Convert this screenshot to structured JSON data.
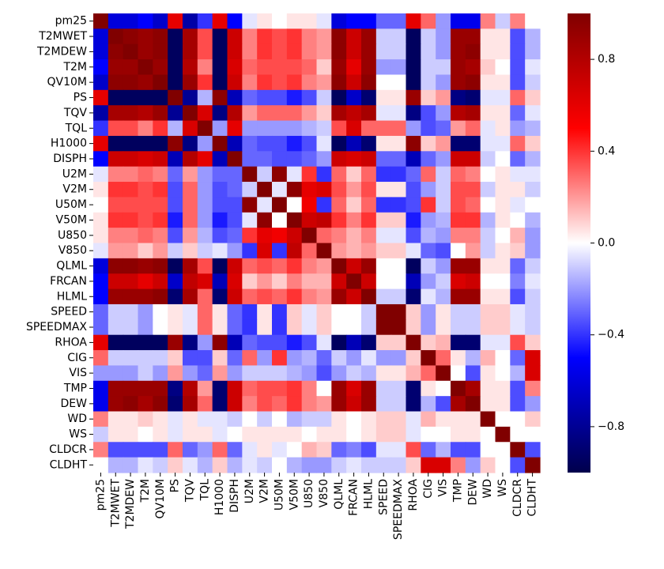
{
  "chart_data": {
    "type": "heatmap",
    "title": "",
    "xlabel": "",
    "ylabel": "",
    "colormap": "seismic",
    "vmin": -1,
    "vmax": 1,
    "colorbar_ticks": [
      -0.8,
      -0.4,
      0.0,
      0.4,
      0.8
    ],
    "colorbar_tick_labels": [
      "−0.8",
      "−0.4",
      "0.0",
      "0.4",
      "0.8"
    ],
    "variables": [
      "pm25",
      "T2MWET",
      "T2MDEW",
      "T2M",
      "QV10M",
      "PS",
      "TQV",
      "TQL",
      "H1000",
      "DISPH",
      "U2M",
      "V2M",
      "U50M",
      "V50M",
      "U850",
      "V850",
      "QLML",
      "FRCAN",
      "HLML",
      "SPEED",
      "SPEEDMAX",
      "RHOA",
      "CIG",
      "VIS",
      "TMP",
      "DEW",
      "WD",
      "WS",
      "CLDCR",
      "CLDHT"
    ],
    "matrix": [
      [
        1.0,
        -0.6,
        -0.6,
        -0.5,
        -0.65,
        0.6,
        -0.75,
        -0.4,
        0.6,
        -0.5,
        -0.05,
        0.05,
        0.0,
        0.05,
        0.05,
        -0.05,
        -0.6,
        -0.5,
        -0.5,
        -0.3,
        -0.3,
        0.6,
        0.3,
        -0.2,
        -0.55,
        -0.55,
        0.25,
        -0.1,
        0.25,
        0.0
      ],
      [
        -0.6,
        1.0,
        0.95,
        0.9,
        0.95,
        -0.95,
        0.85,
        0.35,
        -0.95,
        0.7,
        0.25,
        0.4,
        0.35,
        0.4,
        0.25,
        0.2,
        0.95,
        0.7,
        0.9,
        -0.1,
        -0.1,
        -0.95,
        -0.1,
        -0.2,
        0.9,
        0.9,
        0.05,
        0.05,
        -0.35,
        -0.15
      ],
      [
        -0.6,
        0.95,
        1.0,
        0.9,
        0.95,
        -0.95,
        0.85,
        0.35,
        -0.95,
        0.7,
        0.25,
        0.4,
        0.35,
        0.4,
        0.25,
        0.2,
        0.95,
        0.7,
        0.9,
        -0.1,
        -0.1,
        -0.95,
        -0.1,
        -0.2,
        0.9,
        0.95,
        0.05,
        0.05,
        -0.35,
        -0.15
      ],
      [
        -0.5,
        0.9,
        0.9,
        1.0,
        0.9,
        -0.95,
        0.8,
        0.25,
        -0.95,
        0.65,
        0.3,
        0.35,
        0.35,
        0.35,
        0.3,
        0.1,
        0.9,
        0.6,
        0.9,
        -0.2,
        -0.2,
        -0.95,
        -0.1,
        -0.1,
        0.9,
        0.85,
        0.1,
        0.0,
        -0.35,
        -0.05
      ],
      [
        -0.65,
        0.95,
        0.95,
        0.9,
        1.0,
        -0.95,
        0.9,
        0.4,
        -0.95,
        0.7,
        0.25,
        0.4,
        0.35,
        0.4,
        0.25,
        0.2,
        0.95,
        0.7,
        0.95,
        0.0,
        0.0,
        -0.95,
        -0.1,
        -0.2,
        0.9,
        0.95,
        0.05,
        0.05,
        -0.35,
        -0.1
      ],
      [
        0.6,
        -0.95,
        -0.95,
        -0.95,
        -0.95,
        1.0,
        -0.8,
        -0.15,
        0.95,
        -0.7,
        -0.3,
        -0.35,
        -0.35,
        -0.45,
        -0.35,
        -0.1,
        -0.95,
        -0.65,
        -0.9,
        0.05,
        0.05,
        0.9,
        0.1,
        0.2,
        -0.85,
        -0.9,
        -0.05,
        -0.05,
        0.3,
        0.1
      ],
      [
        -0.75,
        0.85,
        0.85,
        0.8,
        0.9,
        -0.8,
        1.0,
        0.65,
        -0.85,
        0.8,
        0.2,
        0.3,
        0.3,
        0.3,
        0.2,
        0.1,
        0.85,
        0.75,
        0.85,
        -0.05,
        -0.05,
        -0.85,
        -0.35,
        -0.2,
        0.8,
        0.85,
        0.05,
        0.05,
        -0.3,
        -0.05
      ],
      [
        -0.4,
        0.35,
        0.35,
        0.25,
        0.4,
        -0.15,
        0.65,
        1.0,
        -0.2,
        0.6,
        -0.2,
        -0.2,
        -0.2,
        -0.2,
        -0.15,
        -0.1,
        0.35,
        0.65,
        0.3,
        0.3,
        0.3,
        -0.2,
        -0.35,
        -0.3,
        0.2,
        0.3,
        -0.05,
        0.05,
        -0.2,
        -0.15
      ],
      [
        0.6,
        -0.95,
        -0.95,
        -0.95,
        -0.95,
        0.95,
        -0.85,
        -0.2,
        1.0,
        -0.7,
        -0.3,
        -0.35,
        -0.35,
        -0.45,
        -0.35,
        -0.05,
        -0.95,
        -0.7,
        -0.9,
        0.05,
        0.05,
        0.95,
        0.1,
        0.2,
        -0.9,
        -0.9,
        -0.05,
        -0.05,
        0.3,
        0.1
      ],
      [
        -0.5,
        0.7,
        0.7,
        0.65,
        0.7,
        -0.7,
        0.8,
        0.6,
        -0.7,
        1.0,
        -0.3,
        -0.3,
        -0.35,
        -0.35,
        -0.3,
        -0.2,
        0.7,
        0.65,
        0.7,
        -0.3,
        -0.3,
        -0.7,
        -0.3,
        -0.2,
        0.7,
        0.7,
        -0.1,
        0.0,
        -0.3,
        -0.15
      ],
      [
        -0.05,
        0.25,
        0.25,
        0.3,
        0.25,
        -0.3,
        0.2,
        -0.2,
        -0.3,
        -0.3,
        1.0,
        -0.1,
        0.95,
        -0.05,
        0.4,
        -0.4,
        0.3,
        0.1,
        0.3,
        -0.4,
        -0.4,
        -0.3,
        0.3,
        -0.1,
        0.3,
        0.25,
        0.0,
        0.05,
        -0.05,
        -0.05
      ],
      [
        0.05,
        0.4,
        0.4,
        0.35,
        0.4,
        -0.35,
        0.3,
        -0.2,
        -0.35,
        -0.3,
        -0.1,
        1.0,
        -0.05,
        0.95,
        0.6,
        0.65,
        0.35,
        0.2,
        0.35,
        0.05,
        0.05,
        -0.35,
        -0.2,
        -0.1,
        0.35,
        0.35,
        -0.1,
        0.05,
        0.05,
        -0.1
      ],
      [
        0.0,
        0.35,
        0.35,
        0.35,
        0.35,
        -0.35,
        0.3,
        -0.2,
        -0.35,
        -0.35,
        0.95,
        -0.05,
        1.0,
        0.0,
        0.55,
        -0.4,
        0.3,
        0.1,
        0.3,
        -0.4,
        -0.4,
        -0.35,
        0.4,
        -0.1,
        0.35,
        0.3,
        0.0,
        0.05,
        -0.05,
        0.0
      ],
      [
        0.05,
        0.4,
        0.4,
        0.35,
        0.4,
        -0.45,
        0.3,
        -0.2,
        -0.45,
        -0.35,
        -0.05,
        0.95,
        0.0,
        1.0,
        0.7,
        0.75,
        0.4,
        0.25,
        0.4,
        0.1,
        0.1,
        -0.45,
        -0.2,
        -0.15,
        0.4,
        0.4,
        -0.15,
        0.05,
        0.0,
        -0.15
      ],
      [
        0.05,
        0.25,
        0.25,
        0.3,
        0.25,
        -0.35,
        0.2,
        -0.15,
        -0.35,
        -0.3,
        0.4,
        0.6,
        0.55,
        0.7,
        1.0,
        0.3,
        0.25,
        0.15,
        0.25,
        -0.05,
        -0.05,
        -0.35,
        -0.15,
        -0.2,
        0.25,
        0.25,
        -0.1,
        0.0,
        0.15,
        -0.2
      ],
      [
        -0.05,
        0.2,
        0.2,
        0.1,
        0.2,
        -0.1,
        0.1,
        -0.1,
        -0.05,
        -0.2,
        -0.4,
        0.65,
        -0.4,
        0.75,
        0.3,
        1.0,
        0.2,
        0.15,
        0.2,
        0.1,
        0.1,
        -0.05,
        -0.3,
        -0.35,
        0.0,
        0.2,
        -0.1,
        0.05,
        0.1,
        -0.2
      ],
      [
        -0.6,
        0.95,
        0.95,
        0.9,
        0.95,
        -0.95,
        0.85,
        0.35,
        -0.95,
        0.7,
        0.3,
        0.35,
        0.3,
        0.4,
        0.25,
        0.2,
        1.0,
        0.7,
        0.9,
        0.0,
        0.0,
        -0.95,
        -0.1,
        -0.2,
        0.9,
        0.9,
        0.05,
        0.05,
        -0.3,
        -0.1
      ],
      [
        -0.5,
        0.7,
        0.7,
        0.6,
        0.7,
        -0.65,
        0.75,
        0.65,
        -0.7,
        0.65,
        0.1,
        0.2,
        0.1,
        0.25,
        0.15,
        0.15,
        0.7,
        1.0,
        0.7,
        0.0,
        0.0,
        -0.7,
        -0.2,
        -0.1,
        0.65,
        0.7,
        0.0,
        0.0,
        -0.25,
        -0.05
      ],
      [
        -0.5,
        0.9,
        0.9,
        0.9,
        0.95,
        -0.9,
        0.85,
        0.3,
        -0.9,
        0.7,
        0.3,
        0.35,
        0.3,
        0.4,
        0.25,
        0.2,
        0.9,
        0.7,
        1.0,
        -0.1,
        -0.1,
        -0.9,
        -0.05,
        -0.15,
        0.9,
        0.9,
        0.05,
        0.05,
        -0.35,
        -0.1
      ],
      [
        -0.3,
        -0.1,
        -0.1,
        -0.2,
        0.0,
        0.05,
        -0.05,
        0.3,
        0.05,
        -0.3,
        -0.4,
        0.05,
        -0.4,
        0.1,
        -0.05,
        0.1,
        0.0,
        0.0,
        -0.1,
        1.0,
        1.0,
        0.1,
        -0.2,
        0.05,
        -0.1,
        -0.1,
        0.1,
        0.1,
        -0.05,
        -0.1
      ],
      [
        -0.3,
        -0.1,
        -0.1,
        -0.2,
        0.0,
        0.05,
        -0.05,
        0.3,
        0.05,
        -0.3,
        -0.4,
        0.05,
        -0.4,
        0.1,
        -0.05,
        0.1,
        0.0,
        0.0,
        -0.1,
        1.0,
        1.0,
        0.1,
        -0.2,
        0.05,
        -0.1,
        -0.1,
        0.1,
        0.1,
        -0.05,
        -0.1
      ],
      [
        0.6,
        -0.95,
        -0.95,
        -0.95,
        -0.95,
        0.9,
        -0.85,
        -0.2,
        0.95,
        -0.7,
        -0.3,
        -0.35,
        -0.35,
        -0.45,
        -0.35,
        -0.05,
        -0.95,
        -0.7,
        -0.9,
        0.1,
        0.1,
        1.0,
        0.1,
        0.15,
        -0.9,
        -0.9,
        -0.05,
        -0.05,
        0.35,
        0.1
      ],
      [
        0.3,
        -0.1,
        -0.1,
        -0.1,
        -0.1,
        0.1,
        -0.35,
        -0.35,
        0.1,
        -0.3,
        0.3,
        -0.2,
        0.4,
        -0.2,
        -0.15,
        -0.3,
        -0.1,
        -0.2,
        -0.05,
        -0.2,
        -0.2,
        0.1,
        1.0,
        0.3,
        0.05,
        -0.15,
        0.15,
        0.0,
        -0.3,
        0.65
      ],
      [
        -0.2,
        -0.2,
        -0.2,
        -0.1,
        -0.2,
        0.2,
        -0.2,
        -0.3,
        0.2,
        -0.2,
        -0.1,
        -0.1,
        -0.1,
        -0.15,
        -0.2,
        -0.35,
        -0.2,
        -0.1,
        -0.15,
        0.05,
        0.05,
        0.15,
        0.3,
        1.0,
        0.0,
        -0.35,
        0.05,
        0.0,
        -0.15,
        0.65
      ],
      [
        -0.55,
        0.9,
        0.9,
        0.9,
        0.9,
        -0.85,
        0.8,
        0.2,
        -0.9,
        0.7,
        0.3,
        0.35,
        0.35,
        0.4,
        0.25,
        0.0,
        0.9,
        0.65,
        0.9,
        -0.1,
        -0.1,
        -0.9,
        0.05,
        0.0,
        1.0,
        0.85,
        0.05,
        0.05,
        -0.35,
        0.25
      ],
      [
        -0.55,
        0.9,
        0.95,
        0.85,
        0.95,
        -0.9,
        0.85,
        0.3,
        -0.9,
        0.7,
        0.25,
        0.35,
        0.3,
        0.4,
        0.25,
        0.2,
        0.9,
        0.7,
        0.9,
        -0.1,
        -0.1,
        -0.9,
        -0.15,
        -0.35,
        0.85,
        1.0,
        0.05,
        0.05,
        -0.35,
        -0.2
      ],
      [
        0.25,
        0.05,
        0.05,
        0.1,
        0.05,
        -0.05,
        0.05,
        -0.05,
        -0.05,
        -0.1,
        0.0,
        -0.1,
        0.0,
        -0.15,
        -0.1,
        -0.1,
        0.05,
        0.0,
        0.05,
        0.1,
        0.1,
        -0.05,
        0.15,
        0.05,
        0.05,
        0.05,
        1.0,
        0.0,
        0.0,
        0.1
      ],
      [
        -0.1,
        0.05,
        0.05,
        0.0,
        0.05,
        -0.05,
        0.05,
        0.05,
        -0.05,
        0.0,
        0.05,
        0.05,
        0.05,
        0.05,
        0.0,
        0.05,
        0.05,
        0.0,
        0.05,
        0.1,
        0.1,
        -0.05,
        0.0,
        0.0,
        0.05,
        0.05,
        0.0,
        1.0,
        0.0,
        0.0
      ],
      [
        0.25,
        -0.35,
        -0.35,
        -0.35,
        -0.35,
        0.3,
        -0.3,
        -0.2,
        0.3,
        -0.3,
        -0.05,
        0.05,
        -0.05,
        0.0,
        0.15,
        0.1,
        -0.3,
        -0.25,
        -0.35,
        -0.05,
        -0.05,
        0.35,
        -0.3,
        -0.15,
        -0.35,
        -0.35,
        0.0,
        0.0,
        1.0,
        -0.35
      ],
      [
        0.0,
        -0.15,
        -0.15,
        -0.05,
        -0.1,
        0.1,
        -0.05,
        -0.15,
        0.1,
        -0.15,
        -0.05,
        -0.1,
        0.0,
        -0.15,
        -0.2,
        -0.2,
        -0.1,
        -0.05,
        -0.1,
        -0.1,
        -0.1,
        0.1,
        0.65,
        0.65,
        0.25,
        -0.2,
        0.1,
        0.0,
        -0.35,
        1.0
      ]
    ]
  }
}
